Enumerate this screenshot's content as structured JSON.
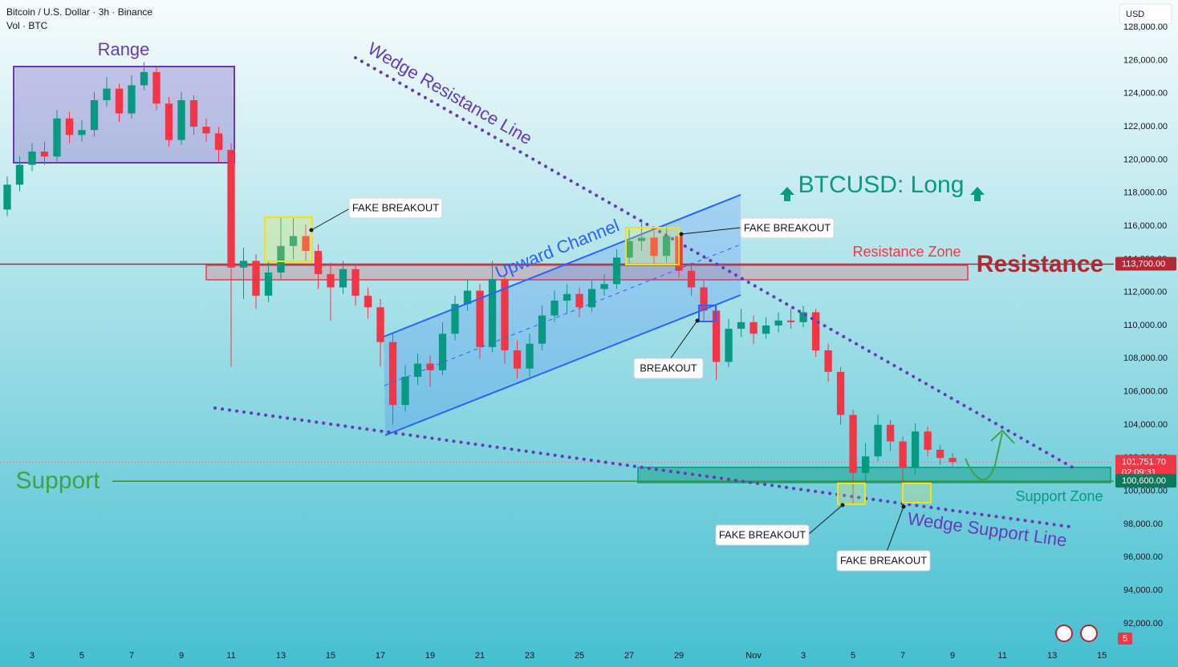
{
  "header": {
    "symbol": "Bitcoin / U.S. Dollar · 3h · Binance",
    "volume": "Vol · BTC",
    "currency": "USD",
    "alert_count": "5"
  },
  "chart_data": {
    "type": "candlestick",
    "x": [
      -1.0,
      -0.5,
      0.0,
      0.5,
      1.0,
      1.5,
      2.0,
      2.5,
      3.0,
      3.5,
      4.0,
      4.5,
      5.0,
      5.5,
      6.0,
      6.5,
      7.0,
      7.5,
      8.0,
      8.5,
      9.0,
      9.5,
      10.0,
      10.5,
      11.0,
      11.5,
      12.0,
      12.5,
      13.0,
      13.5,
      14.0,
      14.5,
      15.0,
      15.5,
      16.0,
      16.5,
      17.0,
      17.5,
      18.0,
      18.5,
      19.0,
      19.5,
      20.0,
      20.5,
      21.0,
      21.5,
      22.0,
      22.5,
      23.0,
      23.5,
      24.0,
      24.5,
      25.0,
      25.5,
      26.0,
      26.5,
      27.0,
      27.5,
      28.0,
      28.5,
      29.0,
      29.5,
      30.0,
      30.5,
      31.0,
      31.5,
      32.0,
      32.5,
      33.0,
      33.5,
      34.0,
      34.5,
      35.0,
      35.5,
      36.0,
      36.5,
      37.0
    ],
    "open": [
      117000,
      118500,
      119700,
      120500,
      120200,
      122500,
      121500,
      121800,
      123600,
      124300,
      122800,
      124500,
      125300,
      123400,
      121200,
      123600,
      122000,
      121600,
      120600,
      113500,
      113900,
      111800,
      113200,
      114800,
      115400,
      114500,
      113100,
      112300,
      113400,
      111800,
      111100,
      109000,
      105200,
      106900,
      107700,
      107300,
      109500,
      111300,
      112100,
      108700,
      112800,
      108500,
      107400,
      108900,
      110600,
      111500,
      111900,
      111100,
      112200,
      112500,
      114100,
      115100,
      115300,
      114200,
      115400,
      113300,
      112300,
      110900,
      107800,
      109800,
      110200,
      109500,
      110000,
      110300,
      110200,
      110800,
      108500,
      107200,
      104600,
      101100,
      102100,
      104000,
      103000,
      101400,
      103600,
      102500,
      102000
    ],
    "high": [
      119000,
      120200,
      121000,
      121100,
      123000,
      122900,
      122400,
      124100,
      125000,
      124600,
      125100,
      125900,
      125600,
      123800,
      124100,
      123900,
      122500,
      122000,
      121000,
      114700,
      114300,
      113900,
      116500,
      116600,
      116100,
      114900,
      113800,
      113900,
      113700,
      112300,
      111600,
      109500,
      107600,
      108300,
      108200,
      110200,
      111800,
      112800,
      112500,
      113900,
      113100,
      109100,
      109500,
      111200,
      112100,
      112500,
      112300,
      112700,
      113100,
      114600,
      115800,
      116200,
      115700,
      116000,
      115700,
      113800,
      112700,
      111300,
      110400,
      111000,
      110600,
      110500,
      110800,
      111000,
      111200,
      111000,
      108900,
      107500,
      104900,
      102900,
      104600,
      104300,
      103300,
      104100,
      103900,
      102800,
      102300
    ],
    "low": [
      116600,
      118100,
      119300,
      119700,
      119900,
      121000,
      121100,
      121400,
      123200,
      122300,
      122500,
      124200,
      123000,
      120800,
      120900,
      121500,
      121100,
      119800,
      107500,
      111600,
      111000,
      111400,
      112800,
      114000,
      113900,
      112200,
      110300,
      111900,
      111200,
      110400,
      107500,
      104000,
      104800,
      106400,
      106300,
      107000,
      109100,
      110900,
      108000,
      108400,
      107700,
      106800,
      106900,
      108500,
      110200,
      110700,
      110500,
      110800,
      111800,
      112200,
      113600,
      114500,
      113700,
      113800,
      112900,
      111800,
      110300,
      106700,
      107500,
      109300,
      108900,
      109200,
      109600,
      109800,
      109900,
      108100,
      106600,
      104000,
      99200,
      100500,
      101800,
      102400,
      99700,
      101000,
      102100,
      101600,
      101500
    ],
    "close": [
      118500,
      119700,
      120500,
      120200,
      122500,
      121500,
      121800,
      123600,
      124300,
      122800,
      124500,
      125300,
      123400,
      121200,
      123600,
      122000,
      121600,
      120600,
      113500,
      113900,
      111800,
      113200,
      114800,
      115400,
      114500,
      113100,
      112300,
      113400,
      111800,
      111100,
      109000,
      105200,
      106900,
      107700,
      107300,
      109500,
      111300,
      112100,
      108700,
      112800,
      108500,
      107400,
      108900,
      110600,
      111500,
      111900,
      111100,
      112200,
      112500,
      114100,
      115100,
      115300,
      114200,
      115400,
      113300,
      112300,
      110900,
      107800,
      109800,
      110200,
      109500,
      110000,
      110300,
      110200,
      110800,
      108500,
      107200,
      104600,
      101100,
      102100,
      104000,
      103000,
      101400,
      103600,
      102500,
      102000,
      101751.7
    ],
    "colors": {
      "up": "#089981",
      "down": "#f23645"
    },
    "xlim": [
      -1.29,
      43.48
    ],
    "ylim": [
      90930,
      129650
    ],
    "xticks": [
      {
        "value": 0,
        "label": "3"
      },
      {
        "value": 2,
        "label": "5"
      },
      {
        "value": 4,
        "label": "7"
      },
      {
        "value": 6,
        "label": "9"
      },
      {
        "value": 8,
        "label": "11"
      },
      {
        "value": 10,
        "label": "13"
      },
      {
        "value": 12,
        "label": "15"
      },
      {
        "value": 14,
        "label": "17"
      },
      {
        "value": 16,
        "label": "19"
      },
      {
        "value": 18,
        "label": "21"
      },
      {
        "value": 20,
        "label": "23"
      },
      {
        "value": 22,
        "label": "25"
      },
      {
        "value": 24,
        "label": "27"
      },
      {
        "value": 26,
        "label": "29"
      },
      {
        "value": 29,
        "label": "Nov"
      },
      {
        "value": 31,
        "label": "3"
      },
      {
        "value": 33,
        "label": "5"
      },
      {
        "value": 35,
        "label": "7"
      },
      {
        "value": 37,
        "label": "9"
      },
      {
        "value": 39,
        "label": "11"
      },
      {
        "value": 41,
        "label": "13"
      },
      {
        "value": 43,
        "label": "15"
      }
    ],
    "yticks": [
      {
        "value": 92000,
        "label": "92,000.00"
      },
      {
        "value": 94000,
        "label": "94,000.00"
      },
      {
        "value": 96000,
        "label": "96,000.00"
      },
      {
        "value": 98000,
        "label": "98,000.00"
      },
      {
        "value": 100000,
        "label": "100,000.00"
      },
      {
        "value": 102000,
        "label": "102,000.00"
      },
      {
        "value": 104000,
        "label": "104,000.00"
      },
      {
        "value": 106000,
        "label": "106,000.00"
      },
      {
        "value": 108000,
        "label": "108,000.00"
      },
      {
        "value": 110000,
        "label": "110,000.00"
      },
      {
        "value": 112000,
        "label": "112,000.00"
      },
      {
        "value": 114000,
        "label": "114,000.00"
      },
      {
        "value": 116000,
        "label": "116,000.00"
      },
      {
        "value": 118000,
        "label": "118,000.00"
      },
      {
        "value": 120000,
        "label": "120,000.00"
      },
      {
        "value": 122000,
        "label": "122,000.00"
      },
      {
        "value": 124000,
        "label": "124,000.00"
      },
      {
        "value": 126000,
        "label": "126,000.00"
      },
      {
        "value": 128000,
        "label": "128,000.00"
      }
    ],
    "levels": {
      "resistance": {
        "value": 113700,
        "label": "113,700.00",
        "color": "#b22833"
      },
      "support": {
        "value": 100600,
        "label": "100,600.00",
        "color": "#388e3c"
      }
    },
    "last_price": {
      "value": 101751.7,
      "label": "101,751.70",
      "countdown": "02:09:31"
    },
    "annotations": {
      "range": "Range",
      "wedge_resistance": "Wedge Resistance Line",
      "upward_channel": "Upward Channel",
      "long_signal": "BTCUSD: Long",
      "resistance_zone": "Resistance Zone",
      "resistance": "Resistance",
      "support": "Support",
      "support_zone": "Support Zone",
      "wedge_support": "Wedge Support Line",
      "callouts": [
        "FAKE BREAKOUT",
        "FAKE BREAKOUT",
        "BREAKOUT",
        "FAKE BREAKOUT",
        "FAKE BREAKOUT"
      ]
    }
  }
}
